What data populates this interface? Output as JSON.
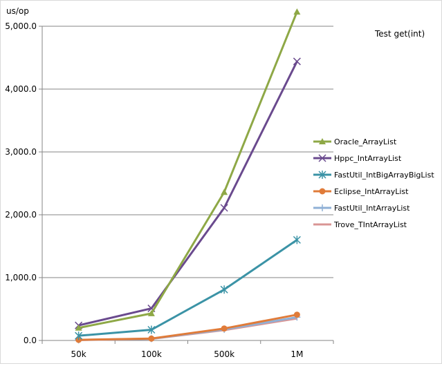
{
  "chart_data": {
    "type": "line",
    "title": "Test get(int)",
    "ylabel": "us/op",
    "xlabel": "",
    "categories": [
      "50k",
      "100k",
      "500k",
      "1M"
    ],
    "ylim": [
      0,
      5000
    ],
    "yticks": [
      0,
      1000,
      2000,
      3000,
      4000,
      5000
    ],
    "ytick_labels": [
      "0.0",
      "1,000.0",
      "2,000.0",
      "3,000.0",
      "4,000.0",
      "5,000.0"
    ],
    "grid": "horizontal",
    "legend_position": "right",
    "series": [
      {
        "name": "Oracle_ArrayList",
        "color": "#8ea846",
        "marker": "triangle",
        "values": [
          200,
          430,
          2360,
          5230
        ]
      },
      {
        "name": "Hppc_IntArrayList",
        "color": "#6a4a8e",
        "marker": "x",
        "values": [
          240,
          510,
          2110,
          4440
        ]
      },
      {
        "name": "FastUtil_IntBigArrayBigList",
        "color": "#3b93a6",
        "marker": "star",
        "values": [
          75,
          170,
          810,
          1600
        ]
      },
      {
        "name": "Eclipse_IntArrayList",
        "color": "#e07b39",
        "marker": "circle",
        "values": [
          10,
          30,
          190,
          410
        ]
      },
      {
        "name": "FastUtil_IntArrayList",
        "color": "#8fb0d6",
        "marker": "plus",
        "values": [
          8,
          28,
          175,
          370
        ]
      },
      {
        "name": "Trove_TIntArrayList",
        "color": "#d99594",
        "marker": "none",
        "values": [
          6,
          25,
          165,
          350
        ]
      }
    ]
  }
}
